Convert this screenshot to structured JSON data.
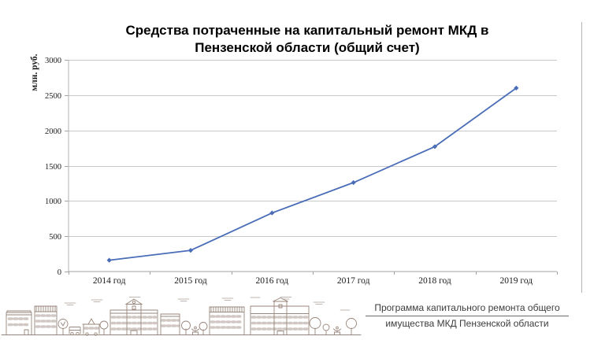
{
  "window": {
    "background": "#ffffff"
  },
  "chart": {
    "title_line1": "Средства потраченные на капитальный ремонт МКД в",
    "title_line2": "Пензенской области (общий счет)",
    "y_axis_label": "млн. руб."
  },
  "chart_data": {
    "type": "line",
    "title": "Средства потраченные на капитальный ремонт МКД в Пензенской области (общий счет)",
    "categories": [
      "2014 год",
      "2015 год",
      "2016 год",
      "2017 год",
      "2018 год",
      "2019 год"
    ],
    "values": [
      160,
      300,
      830,
      1260,
      1770,
      2600
    ],
    "series": [
      {
        "name": "Средства потраченные на капитальный ремонт",
        "values": [
          160,
          300,
          830,
          1260,
          1770,
          2600
        ]
      }
    ],
    "xlabel": "",
    "ylabel": "млн. руб.",
    "ylim": [
      0,
      3000
    ],
    "ytick_step": 500,
    "grid": true,
    "legend": "none",
    "line_color": "#4a6db7",
    "marker": "diamond",
    "gridline_color": "#c9c9c9",
    "axis_color": "#a3a3a3"
  },
  "footer": {
    "credit_line1": "Программа капитального ремонта общего",
    "credit_line2": "имущества МКД Пензенской области",
    "illustration_name": "city-skyline-line-art",
    "illustration_color": "#98857b"
  },
  "decor": {
    "divider_color": "#b5b5b5"
  }
}
